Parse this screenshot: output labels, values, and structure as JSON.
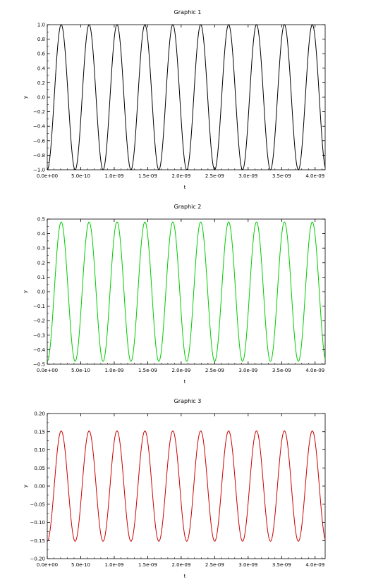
{
  "chart_data": [
    {
      "type": "line",
      "title": "Graphic 1",
      "xlabel": "t",
      "ylabel": "y",
      "xlim": [
        0,
        4.15e-09
      ],
      "ylim": [
        -1.0,
        1.0
      ],
      "grid": false,
      "xticks": [
        0,
        5e-10,
        1e-09,
        1.5e-09,
        2e-09,
        2.5e-09,
        3e-09,
        3.5e-09,
        4e-09
      ],
      "xtick_labels": [
        "0.0e+00",
        "5.0e-10",
        "1.0e-09",
        "1.5e-09",
        "2.0e-09",
        "2.5e-09",
        "3.0e-09",
        "3.5e-09",
        "4.0e-09"
      ],
      "yticks": [
        -1.0,
        -0.8,
        -0.6,
        -0.4,
        -0.2,
        0.0,
        0.2,
        0.4,
        0.6,
        0.8,
        1.0
      ],
      "ytick_labels": [
        "−1.0",
        "−0.8",
        "−0.6",
        "−0.4",
        "−0.2",
        "0.0",
        "0.2",
        "0.4",
        "0.6",
        "0.8",
        "1.0"
      ],
      "series": [
        {
          "color": "#000000",
          "amplitude": 1.0,
          "frequency_hz": 2400000000.0,
          "phase_rad": -1.5708,
          "x_start": 0,
          "x_end": 4.15e-09
        }
      ]
    },
    {
      "type": "line",
      "title": "Graphic 2",
      "xlabel": "t",
      "ylabel": "y",
      "xlim": [
        0,
        4.15e-09
      ],
      "ylim": [
        -0.5,
        0.5
      ],
      "grid": false,
      "xticks": [
        0,
        5e-10,
        1e-09,
        1.5e-09,
        2e-09,
        2.5e-09,
        3e-09,
        3.5e-09,
        4e-09
      ],
      "xtick_labels": [
        "0.0e+00",
        "5.0e-10",
        "1.0e-09",
        "1.5e-09",
        "2.0e-09",
        "2.5e-09",
        "3.0e-09",
        "3.5e-09",
        "4.0e-09"
      ],
      "yticks": [
        -0.5,
        -0.4,
        -0.3,
        -0.2,
        -0.1,
        0.0,
        0.1,
        0.2,
        0.3,
        0.4,
        0.5
      ],
      "ytick_labels": [
        "−0.5",
        "−0.4",
        "−0.3",
        "−0.2",
        "−0.1",
        "0.0",
        "0.1",
        "0.2",
        "0.3",
        "0.4",
        "0.5"
      ],
      "series": [
        {
          "color": "#00cc00",
          "amplitude": 0.48,
          "frequency_hz": 2400000000.0,
          "phase_rad": -1.5708,
          "x_start": 0,
          "x_end": 4.15e-09
        }
      ]
    },
    {
      "type": "line",
      "title": "Graphic 3",
      "xlabel": "t",
      "ylabel": "y",
      "xlim": [
        0,
        4.15e-09
      ],
      "ylim": [
        -0.2,
        0.2
      ],
      "grid": false,
      "xticks": [
        0,
        5e-10,
        1e-09,
        1.5e-09,
        2e-09,
        2.5e-09,
        3e-09,
        3.5e-09,
        4e-09
      ],
      "xtick_labels": [
        "0.0e+00",
        "5.0e-10",
        "1.0e-09",
        "1.5e-09",
        "2.0e-09",
        "2.5e-09",
        "3.0e-09",
        "3.5e-09",
        "4.0e-09"
      ],
      "yticks": [
        -0.2,
        -0.15,
        -0.1,
        -0.05,
        0.0,
        0.05,
        0.1,
        0.15,
        0.2
      ],
      "ytick_labels": [
        "−0.20",
        "−0.15",
        "−0.10",
        "−0.05",
        "0.00",
        "0.05",
        "0.10",
        "0.15",
        "0.20"
      ],
      "series": [
        {
          "color": "#cc0000",
          "amplitude": 0.152,
          "frequency_hz": 2400000000.0,
          "phase_rad": -1.5708,
          "x_start": 0,
          "x_end": 4.15e-09
        }
      ]
    }
  ]
}
